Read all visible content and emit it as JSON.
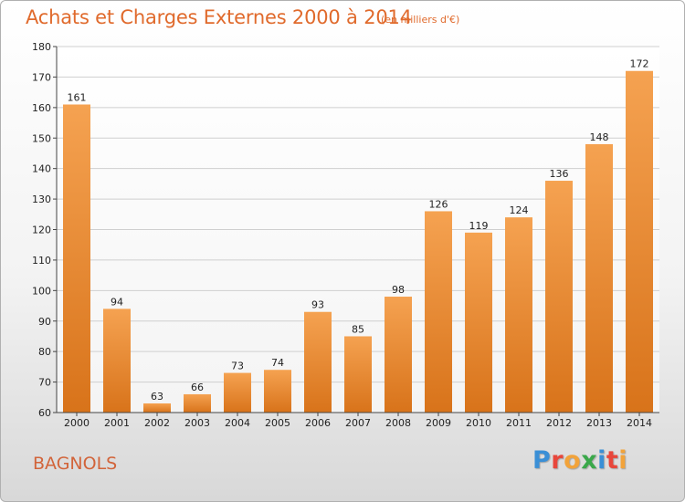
{
  "header": {
    "title": "Achats et Charges Externes 2000 à 2014",
    "unit": "(en milliers d'€)"
  },
  "footer": {
    "commune": "BAGNOLS",
    "brand_letters": [
      {
        "char": "P",
        "color": "#3a8fd6"
      },
      {
        "char": "r",
        "color": "#e8473c"
      },
      {
        "char": "o",
        "color": "#f2a33a"
      },
      {
        "char": "x",
        "color": "#3aa84a"
      },
      {
        "char": "i",
        "color": "#3a8fd6"
      },
      {
        "char": "t",
        "color": "#e8473c"
      },
      {
        "char": "i",
        "color": "#f2a33a"
      }
    ]
  },
  "colors": {
    "bar_light": "#f5a251",
    "bar_dark": "#d8731a",
    "grid": "#cfcfcf",
    "title": "#e06a2c"
  },
  "chart_data": {
    "type": "bar",
    "title": "Achats et Charges Externes 2000 à 2014",
    "subtitle": "(en milliers d'€)",
    "xlabel": "",
    "ylabel": "",
    "categories": [
      "2000",
      "2001",
      "2002",
      "2003",
      "2004",
      "2005",
      "2006",
      "2007",
      "2008",
      "2009",
      "2010",
      "2011",
      "2012",
      "2013",
      "2014"
    ],
    "values": [
      161,
      94,
      63,
      66,
      73,
      74,
      93,
      85,
      98,
      126,
      119,
      124,
      136,
      148,
      172
    ],
    "ylim": [
      60,
      180
    ],
    "yticks": [
      60,
      70,
      80,
      90,
      100,
      110,
      120,
      130,
      140,
      150,
      160,
      170,
      180
    ],
    "grid": true,
    "data_labels": true
  }
}
